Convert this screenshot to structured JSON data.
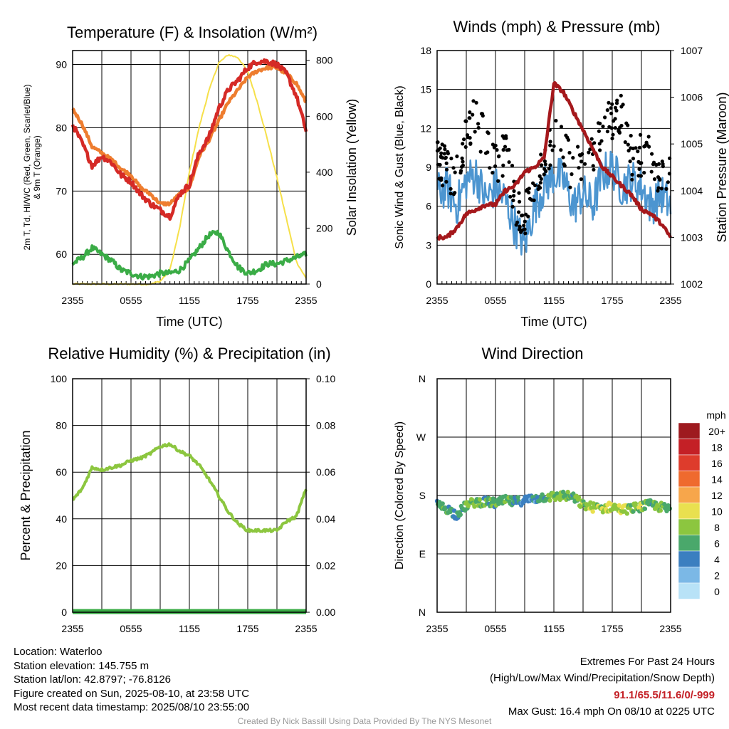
{
  "colors": {
    "temp_red": "#d52a26",
    "dew_green": "#3aac46",
    "hiwc_scarlet": "#d52a26",
    "t9m_orange": "#ee7d2f",
    "solar_yellow": "#f6e04a",
    "wind_blue": "#4c95d0",
    "gust_black": "#000000",
    "pressure_maroon": "#a5181c",
    "rh_green": "#8cc63f",
    "precip_green": "#3aac46"
  },
  "info": {
    "location": "Location: Waterloo",
    "elevation": "Station elevation: 145.755 m",
    "latlon": "Station lat/lon: 42.8797; -76.8126",
    "created": "Figure created on Sun, 2025-08-10, at 23:58 UTC",
    "recent": "Most recent data timestamp: 2025/08/10 23:55:00"
  },
  "extremes": {
    "title": "Extremes For Past 24 Hours",
    "subtitle": "(High/Low/Max Wind/Precipitation/Snow Depth)",
    "values": "91.1/65.5/11.6/0/-999",
    "max_gust": "Max Gust: 16.4 mph On 08/10 at 0225 UTC"
  },
  "credit": "Created By Nick Bassill Using Data Provided By The NYS Mesonet",
  "x_ticks": [
    "2355",
    "0555",
    "1155",
    "1755",
    "2355"
  ],
  "speed_legend": {
    "title": "mph",
    "entries": [
      {
        "label": "20+",
        "color": "#9e1a1f"
      },
      {
        "label": "18",
        "color": "#c42026"
      },
      {
        "label": "16",
        "color": "#de3c2c"
      },
      {
        "label": "14",
        "color": "#ef6a2e"
      },
      {
        "label": "12",
        "color": "#f7a64b"
      },
      {
        "label": "10",
        "color": "#e9e04f"
      },
      {
        "label": "8",
        "color": "#8cc63f"
      },
      {
        "label": "6",
        "color": "#4aa86b"
      },
      {
        "label": "4",
        "color": "#3b7fc0"
      },
      {
        "label": "2",
        "color": "#7bb8e6"
      },
      {
        "label": "0",
        "color": "#b8e2f7"
      }
    ]
  },
  "chart_data": [
    {
      "type": "line",
      "title": "Temperature (F) & Insolation (W/m²)",
      "xlabel": "Time (UTC)",
      "ylabel_lines": [
        "2m T, Td, HI/WC (Red, Green, Scarlet/Blue)",
        "& 9m T (Orange)"
      ],
      "y2label": "Solar Insolation (Yellow)",
      "ylim": [
        55.3,
        92.2
      ],
      "y2lim": [
        0,
        835
      ],
      "yticks": [
        60,
        70,
        80,
        90
      ],
      "y2ticks": [
        0,
        200,
        400,
        600,
        800
      ],
      "x_hours": [
        0,
        1,
        2,
        3,
        4,
        5,
        6,
        7,
        8,
        9,
        10,
        11,
        12,
        13,
        14,
        15,
        16,
        17,
        18,
        19,
        20,
        21,
        22,
        23,
        24
      ],
      "series": [
        {
          "name": "2m T",
          "axis": "left",
          "values": [
            80.5,
            77.5,
            74.0,
            75.5,
            74.5,
            72.5,
            71.5,
            69.5,
            68.0,
            67.0,
            66.0,
            69.5,
            71.0,
            76.0,
            78.5,
            83.0,
            86.0,
            87.5,
            89.5,
            90.5,
            90.5,
            90.0,
            88.5,
            85.0,
            79.5
          ]
        },
        {
          "name": "9m T",
          "axis": "left",
          "values": [
            83.0,
            80.5,
            77.0,
            76.0,
            75.0,
            73.5,
            72.5,
            70.5,
            69.5,
            68.0,
            68.0,
            69.5,
            70.5,
            75.5,
            78.0,
            81.0,
            84.0,
            86.0,
            88.0,
            89.0,
            89.5,
            89.5,
            88.5,
            87.0,
            84.0
          ]
        },
        {
          "name": "2m Td",
          "axis": "left",
          "values": [
            58.5,
            59.5,
            61.0,
            60.0,
            59.0,
            57.5,
            57.0,
            56.5,
            56.5,
            57.0,
            57.0,
            57.5,
            59.0,
            61.0,
            63.0,
            63.5,
            60.5,
            58.0,
            57.0,
            57.5,
            58.5,
            58.5,
            59.0,
            59.5,
            60.0
          ]
        },
        {
          "name": "Solar Insolation",
          "axis": "right",
          "values": [
            0,
            0,
            0,
            0,
            0,
            0,
            0,
            0,
            0,
            10,
            50,
            200,
            400,
            560,
            690,
            790,
            820,
            810,
            760,
            650,
            520,
            380,
            230,
            80,
            20
          ]
        }
      ]
    },
    {
      "type": "line",
      "title": "Winds (mph) & Pressure (mb)",
      "xlabel": "Time (UTC)",
      "ylabel": "Sonic Wind & Gust (Blue, Black)",
      "y2label": "Station Pressure (Maroon)",
      "ylim": [
        0,
        18
      ],
      "y2lim": [
        1002,
        1007
      ],
      "yticks": [
        0,
        3,
        6,
        9,
        12,
        15,
        18
      ],
      "y2ticks": [
        1002,
        1003,
        1004,
        1005,
        1006,
        1007
      ],
      "x_hours": [
        0,
        1,
        2,
        3,
        4,
        5,
        6,
        7,
        8,
        9,
        10,
        11,
        12,
        13,
        14,
        15,
        16,
        17,
        18,
        19,
        20,
        21,
        22,
        23,
        24
      ],
      "series": [
        {
          "name": "Sonic Wind",
          "axis": "left",
          "values": [
            7.0,
            7.5,
            6.0,
            8.0,
            8.5,
            6.5,
            7.5,
            6.5,
            4.5,
            3.0,
            6.0,
            7.5,
            8.5,
            8.0,
            6.0,
            7.0,
            6.0,
            8.5,
            9.0,
            7.5,
            8.0,
            7.5,
            6.0,
            7.0,
            6.0
          ]
        },
        {
          "name": "Gust",
          "axis": "left",
          "values": [
            9.5,
            9.0,
            8.0,
            11.5,
            13.0,
            10.5,
            9.5,
            10.0,
            6.5,
            5.0,
            8.0,
            9.0,
            11.0,
            10.5,
            8.5,
            9.5,
            10.0,
            12.0,
            12.5,
            13.5,
            9.5,
            10.0,
            9.5,
            8.5,
            8.0
          ]
        },
        {
          "name": "Station Pressure",
          "axis": "right",
          "values": [
            1003.0,
            1003.0,
            1003.2,
            1003.5,
            1003.6,
            1003.7,
            1003.7,
            1004.0,
            1004.1,
            1004.4,
            1004.5,
            1004.7,
            1006.3,
            1006.1,
            1005.7,
            1005.3,
            1004.9,
            1004.5,
            1004.3,
            1004.1,
            1003.9,
            1003.6,
            1003.5,
            1003.3,
            1003.0
          ]
        }
      ]
    },
    {
      "type": "line",
      "title": "Relative Humidity (%) & Precipitation (in)",
      "ylabel": "Percent & Precipitation",
      "ylim": [
        0,
        100
      ],
      "y2lim": [
        0,
        0.1
      ],
      "yticks": [
        0,
        20,
        40,
        60,
        80,
        100
      ],
      "y2ticks": [
        "0.00",
        "0.02",
        "0.04",
        "0.06",
        "0.08",
        "0.10"
      ],
      "x_hours": [
        0,
        1,
        2,
        3,
        4,
        5,
        6,
        7,
        8,
        9,
        10,
        11,
        12,
        13,
        14,
        15,
        16,
        17,
        18,
        19,
        20,
        21,
        22,
        23,
        24
      ],
      "series": [
        {
          "name": "Relative Humidity",
          "axis": "left",
          "values": [
            48,
            53,
            62,
            61,
            62,
            63,
            65,
            66,
            68,
            71,
            72,
            69,
            67,
            63,
            57,
            50,
            43,
            38,
            35,
            35,
            35,
            35,
            39,
            41,
            53
          ]
        },
        {
          "name": "Precipitation",
          "axis": "right",
          "values": [
            0,
            0,
            0,
            0,
            0,
            0,
            0,
            0,
            0,
            0,
            0,
            0,
            0,
            0,
            0,
            0,
            0,
            0,
            0,
            0,
            0,
            0,
            0,
            0,
            0
          ]
        }
      ]
    },
    {
      "type": "scatter",
      "title": "Wind Direction",
      "ylabel": "Direction (Colored By Speed)",
      "yticks": [
        "N",
        "E",
        "S",
        "W",
        "N"
      ],
      "ylim_deg": [
        0,
        360
      ],
      "x_hours": [
        0,
        1,
        2,
        3,
        4,
        5,
        6,
        7,
        8,
        9,
        10,
        11,
        12,
        13,
        14,
        15,
        16,
        17,
        18,
        19,
        20,
        21,
        22,
        23,
        24
      ],
      "direction_deg": [
        165,
        160,
        150,
        165,
        170,
        170,
        168,
        172,
        170,
        173,
        175,
        178,
        178,
        180,
        177,
        165,
        162,
        160,
        163,
        158,
        160,
        163,
        166,
        162,
        158
      ],
      "speed_mph": [
        6,
        6,
        4,
        7,
        7,
        6,
        6,
        7,
        5,
        3,
        4,
        6,
        7,
        7,
        6,
        8,
        8,
        8,
        9,
        9,
        7,
        8,
        6,
        7,
        6
      ]
    }
  ]
}
